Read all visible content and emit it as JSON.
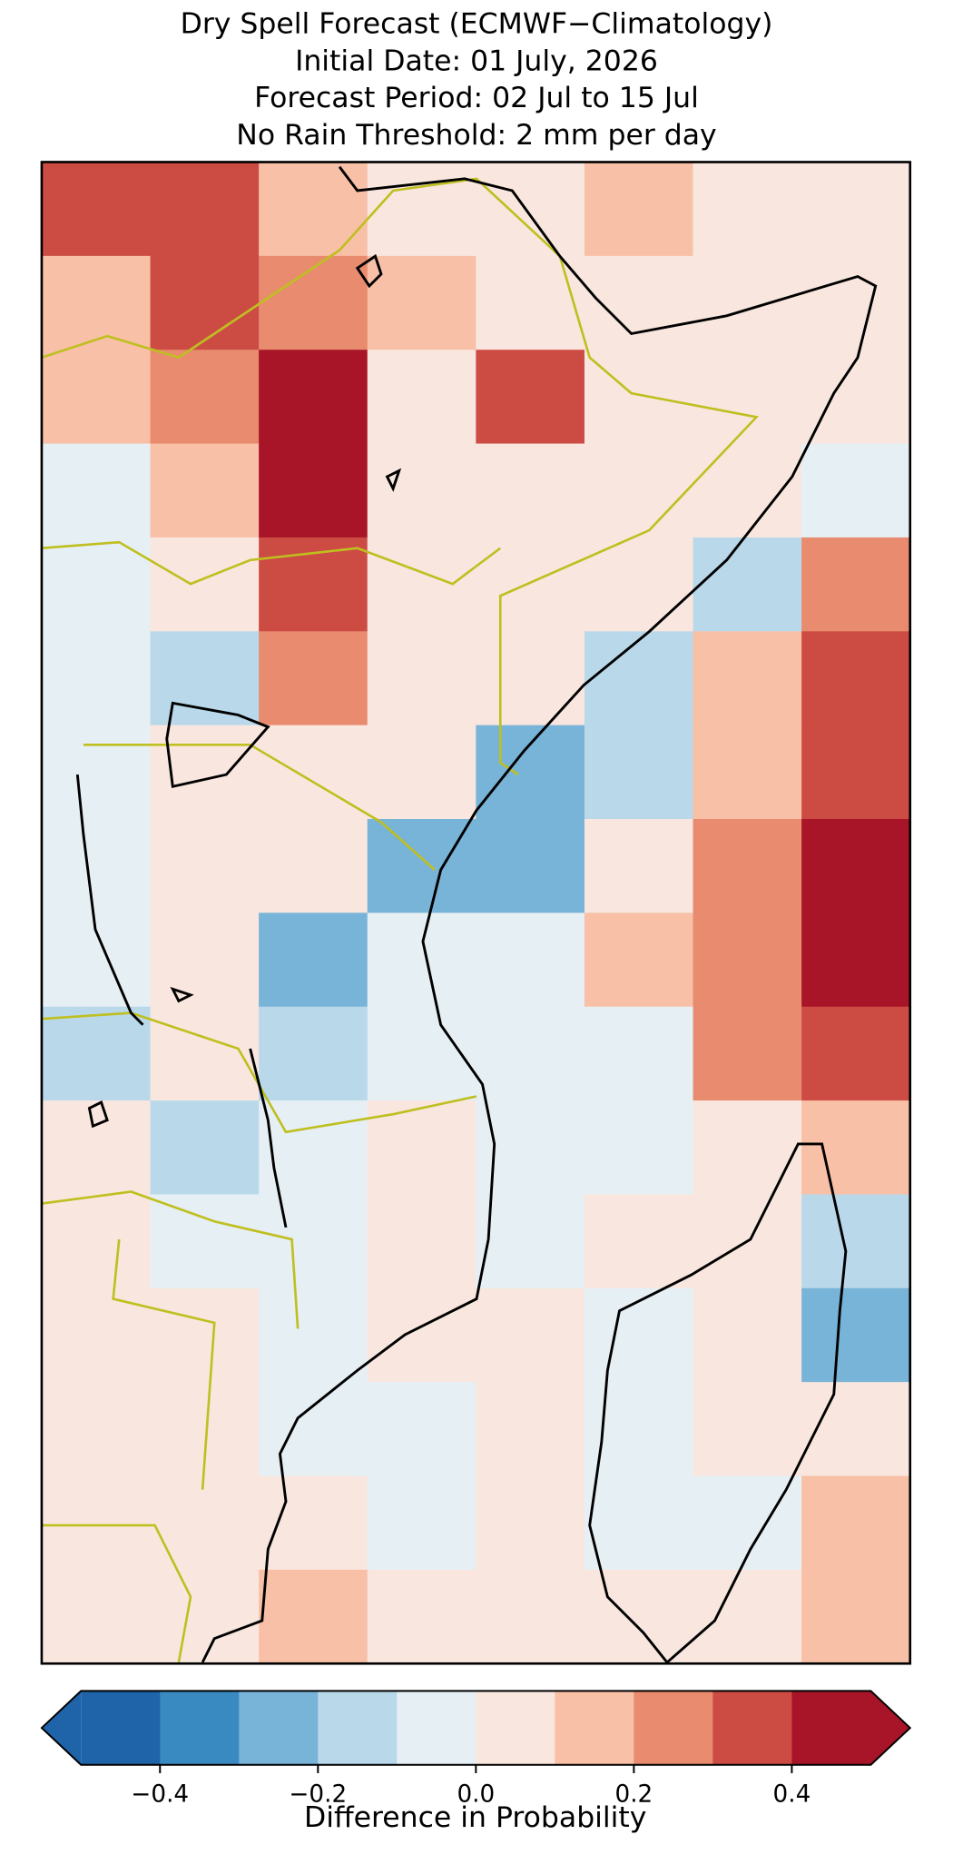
{
  "chart_data": {
    "type": "heatmap",
    "title": [
      "Dry Spell Forecast (ECMWF−Climatology)",
      "Initial Date: 01 July, 2026",
      "Forecast Period: 02 Jul to 15 Jul",
      "No Rain Threshold: 2 mm per day"
    ],
    "values": [
      [
        0.35,
        0.35,
        0.15,
        0.05,
        0.05,
        0.15,
        0.05,
        0.05
      ],
      [
        0.15,
        0.35,
        0.25,
        0.15,
        0.05,
        0.05,
        0.05,
        0.05
      ],
      [
        0.15,
        0.25,
        0.45,
        0.05,
        0.35,
        0.05,
        0.05,
        0.05
      ],
      [
        -0.05,
        0.15,
        0.45,
        0.05,
        0.05,
        0.05,
        0.05,
        -0.05
      ],
      [
        -0.05,
        0.05,
        0.35,
        0.05,
        0.05,
        0.05,
        -0.15,
        0.25
      ],
      [
        -0.05,
        -0.15,
        0.25,
        0.05,
        0.05,
        -0.15,
        0.15,
        0.35
      ],
      [
        -0.05,
        0.05,
        0.05,
        0.05,
        -0.25,
        -0.15,
        0.15,
        0.35
      ],
      [
        -0.05,
        0.05,
        0.05,
        -0.25,
        -0.25,
        0.05,
        0.25,
        0.45
      ],
      [
        -0.05,
        0.05,
        -0.25,
        -0.05,
        -0.05,
        0.15,
        0.25,
        0.45
      ],
      [
        -0.15,
        0.05,
        -0.15,
        -0.05,
        -0.05,
        -0.05,
        0.25,
        0.35
      ],
      [
        0.05,
        -0.15,
        -0.05,
        0.05,
        -0.05,
        -0.05,
        0.05,
        0.15
      ],
      [
        0.05,
        -0.05,
        -0.05,
        0.05,
        -0.05,
        0.05,
        0.05,
        -0.15
      ],
      [
        0.05,
        0.05,
        -0.05,
        0.05,
        0.05,
        -0.05,
        0.05,
        -0.25
      ],
      [
        0.05,
        0.05,
        -0.05,
        -0.05,
        0.05,
        -0.05,
        0.05,
        0.05
      ],
      [
        0.05,
        0.05,
        0.05,
        -0.05,
        0.05,
        -0.05,
        -0.05,
        0.15
      ],
      [
        0.05,
        0.05,
        0.15,
        0.05,
        0.05,
        0.05,
        0.05,
        0.15
      ]
    ],
    "levels": [
      -0.5,
      -0.4,
      -0.3,
      -0.2,
      -0.1,
      0.0,
      0.1,
      0.2,
      0.3,
      0.4,
      0.5
    ],
    "colors": [
      "#1f63a8",
      "#3a8ac2",
      "#78b3d8",
      "#b9d9ea",
      "#e6eff4",
      "#f9e7df",
      "#f8c0a6",
      "#e88b6e",
      "#cc4c44",
      "#a81529"
    ],
    "extend": "both",
    "colorbar_ticks": [
      -0.4,
      -0.2,
      0.0,
      {
        "value": 0.2,
        "label": "0.2"
      },
      {
        "value": 0.4,
        "label": "0.4"
      }
    ],
    "colorbar_label": "Difference in Probability"
  }
}
